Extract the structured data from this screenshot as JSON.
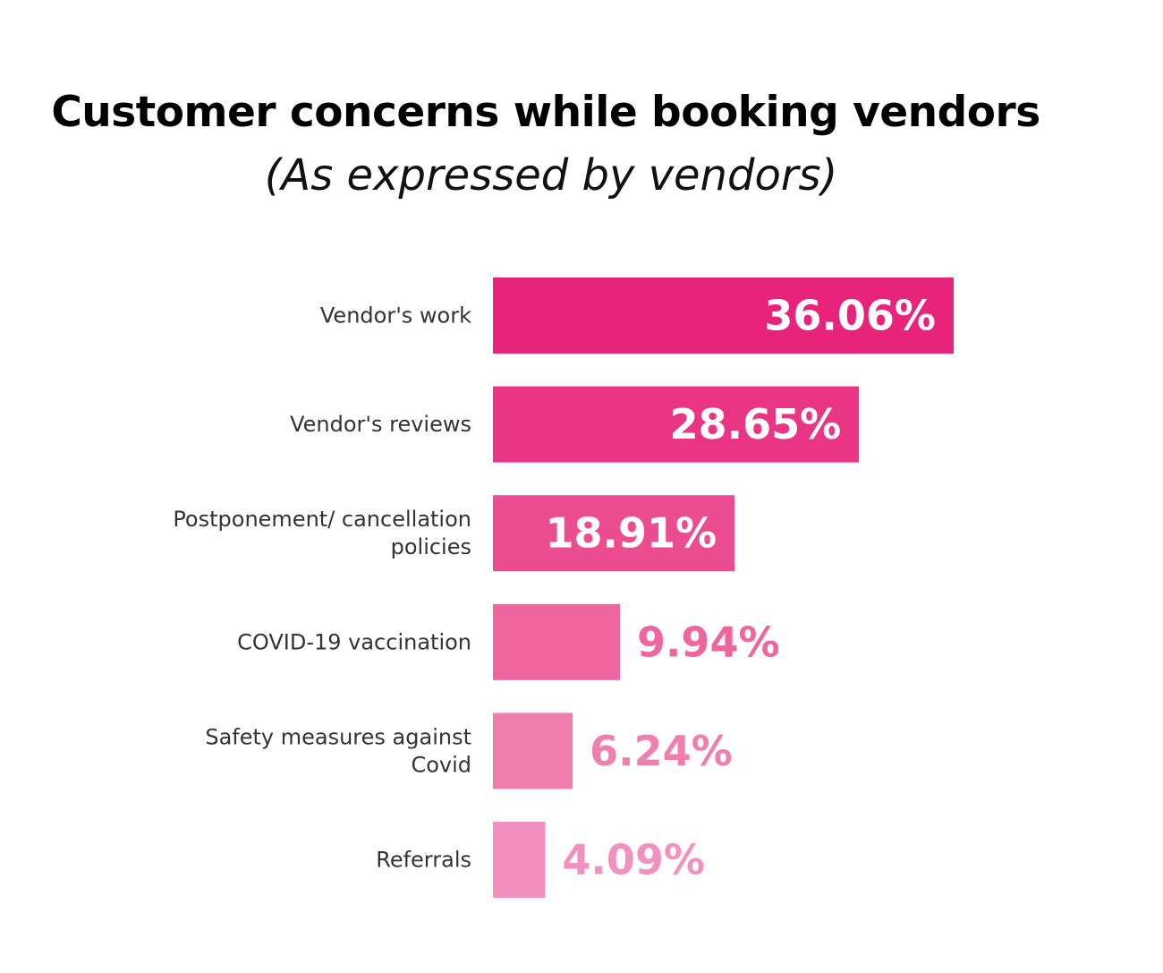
{
  "chart_data": {
    "type": "bar",
    "orientation": "horizontal",
    "title": "Customer concerns while booking vendors",
    "subtitle": "(As expressed by vendors)",
    "xlim": [
      0,
      36.06
    ],
    "grid": false,
    "legend": "none",
    "categories": [
      [
        "Vendor's work"
      ],
      [
        "Vendor's reviews"
      ],
      [
        "Postponement/ cancellation",
        "policies"
      ],
      [
        "COVID-19 vaccination"
      ],
      [
        "Safety measures against",
        "Covid"
      ],
      [
        "Referrals"
      ]
    ],
    "values": [
      36.06,
      28.65,
      18.91,
      9.94,
      6.24,
      4.09
    ],
    "value_labels": [
      "36.06%",
      "28.65%",
      "18.91%",
      "9.94%",
      "6.24%",
      "4.09%"
    ],
    "colors": [
      "#e8237a",
      "#ea3584",
      "#ec4c90",
      "#ee65a0",
      "#f07fb0",
      "#f291c0"
    ],
    "label_positions": [
      "inside",
      "inside",
      "inside",
      "outside",
      "outside",
      "outside"
    ]
  }
}
